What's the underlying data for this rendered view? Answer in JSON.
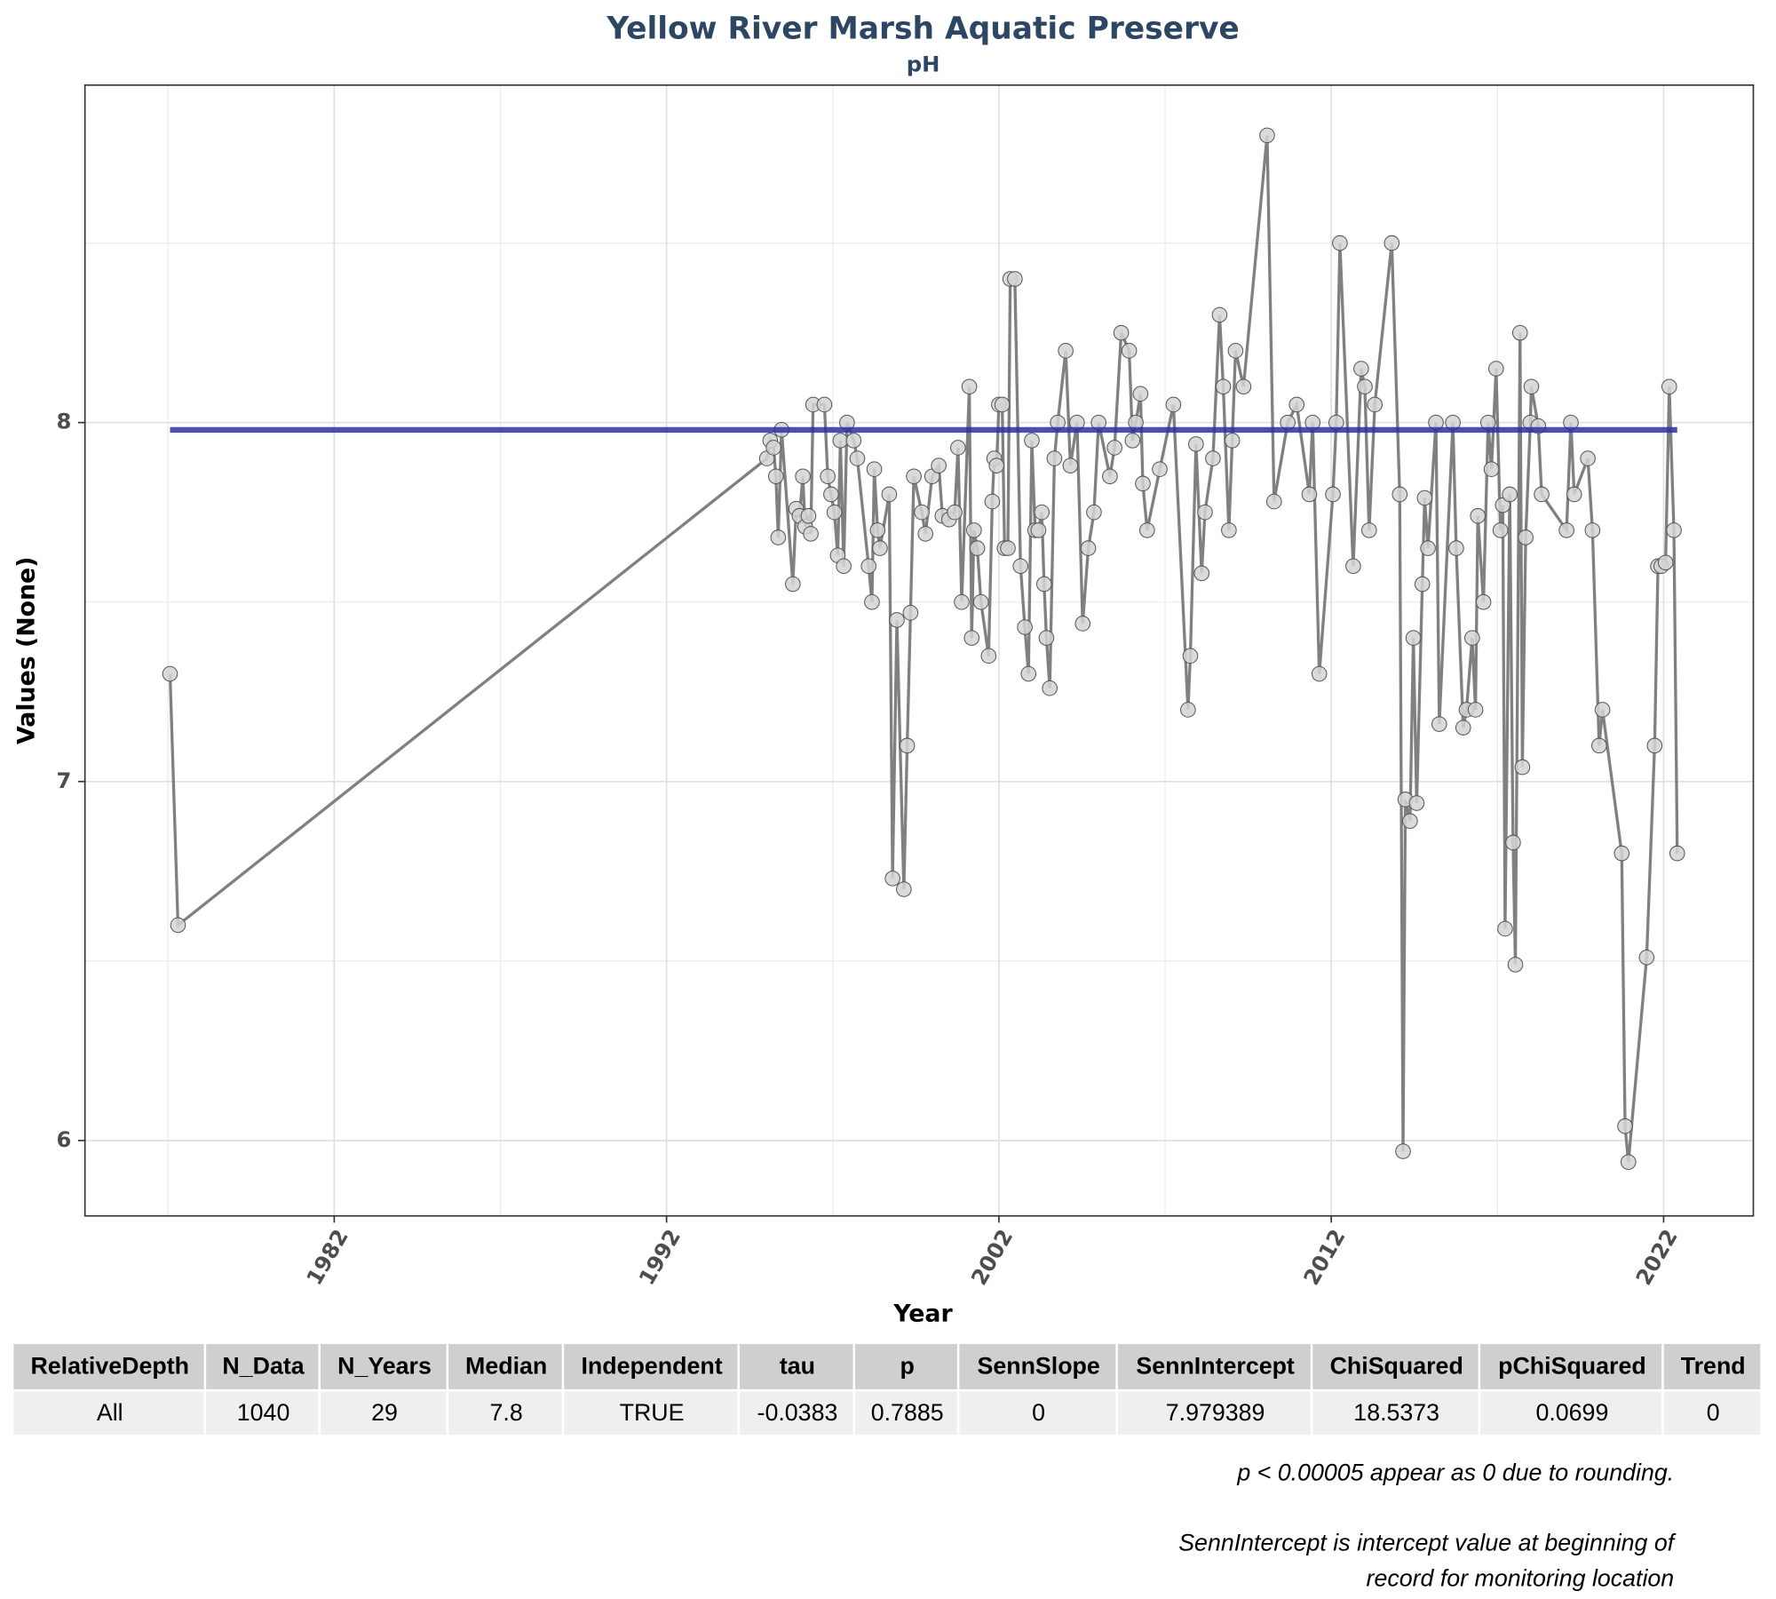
{
  "chart_data": {
    "type": "line",
    "title": "Yellow River Marsh Aquatic Preserve",
    "subtitle": "pH",
    "x_label": "Year",
    "y_label": "Values (None)",
    "xlim": [
      1974.5,
      2024.7
    ],
    "ylim": [
      5.79,
      8.94
    ],
    "xticks": [
      1982,
      1992,
      2002,
      2012,
      2022
    ],
    "yticks": [
      6,
      7,
      8
    ],
    "x_minor_ticks": [
      1977,
      1987,
      1997,
      2007,
      2017
    ],
    "y_minor_ticks": [
      6.5,
      7.5,
      8.5
    ],
    "grid": true,
    "line_color": "#808080",
    "point_color": "#d3d3d3",
    "trend_color": "#2e2eab",
    "x": [
      1977.06,
      1977.3,
      1995.02,
      1995.12,
      1995.22,
      1995.29,
      1995.36,
      1995.46,
      1995.8,
      1995.9,
      1996.0,
      1996.1,
      1996.17,
      1996.27,
      1996.34,
      1996.41,
      1996.75,
      1996.85,
      1996.95,
      1997.05,
      1997.15,
      1997.23,
      1997.33,
      1997.43,
      1997.63,
      1997.74,
      1998.08,
      1998.18,
      1998.25,
      1998.35,
      1998.42,
      1998.7,
      1998.8,
      1998.93,
      1999.14,
      1999.24,
      1999.34,
      1999.44,
      1999.68,
      1999.79,
      1999.99,
      2000.19,
      2000.3,
      2000.5,
      2000.67,
      2000.77,
      2000.88,
      2001.11,
      2001.18,
      2001.25,
      2001.35,
      2001.46,
      2001.69,
      2001.8,
      2001.86,
      2001.93,
      2002.0,
      2002.1,
      2002.17,
      2002.27,
      2002.34,
      2002.48,
      2002.65,
      2002.78,
      2002.89,
      2002.99,
      2003.09,
      2003.19,
      2003.29,
      2003.36,
      2003.43,
      2003.53,
      2003.67,
      2003.77,
      2004.01,
      2004.15,
      2004.35,
      2004.52,
      2004.69,
      2004.86,
      2005.0,
      2005.34,
      2005.48,
      2005.68,
      2005.92,
      2006.02,
      2006.12,
      2006.26,
      2006.33,
      2006.46,
      2006.84,
      2007.25,
      2007.69,
      2007.76,
      2007.93,
      2008.1,
      2008.2,
      2008.44,
      2008.64,
      2008.75,
      2008.92,
      2009.02,
      2009.12,
      2009.36,
      2010.07,
      2010.28,
      2010.69,
      2010.96,
      2011.34,
      2011.44,
      2011.64,
      2012.05,
      2012.15,
      2012.26,
      2012.66,
      2012.9,
      2013.01,
      2013.14,
      2013.31,
      2013.82,
      2014.06,
      2014.16,
      2014.23,
      2014.37,
      2014.47,
      2014.57,
      2014.74,
      2014.81,
      2014.91,
      2015.15,
      2015.25,
      2015.66,
      2015.76,
      2015.97,
      2016.07,
      2016.24,
      2016.34,
      2016.41,
      2016.58,
      2016.72,
      2016.82,
      2016.96,
      2017.09,
      2017.16,
      2017.23,
      2017.37,
      2017.47,
      2017.54,
      2017.68,
      2017.75,
      2017.85,
      2017.99,
      2018.02,
      2018.23,
      2018.33,
      2019.08,
      2019.21,
      2019.31,
      2019.72,
      2019.86,
      2020.06,
      2020.16,
      2020.74,
      2020.84,
      2020.94,
      2021.49,
      2021.73,
      2021.83,
      2021.93,
      2022.06,
      2022.17,
      2022.31,
      2022.41
    ],
    "values": [
      7.3,
      6.6,
      7.9,
      7.95,
      7.93,
      7.85,
      7.68,
      7.98,
      7.55,
      7.76,
      7.74,
      7.85,
      7.71,
      7.74,
      7.69,
      8.05,
      8.05,
      7.85,
      7.8,
      7.75,
      7.63,
      7.95,
      7.6,
      8.0,
      7.95,
      7.9,
      7.6,
      7.5,
      7.87,
      7.7,
      7.65,
      7.8,
      6.73,
      7.45,
      6.7,
      7.1,
      7.47,
      7.85,
      7.75,
      7.69,
      7.85,
      7.88,
      7.74,
      7.73,
      7.75,
      7.93,
      7.5,
      8.1,
      7.4,
      7.7,
      7.65,
      7.5,
      7.35,
      7.78,
      7.9,
      7.88,
      8.05,
      8.05,
      7.65,
      7.65,
      8.4,
      8.4,
      7.6,
      7.43,
      7.3,
      7.95,
      7.7,
      7.7,
      7.75,
      7.55,
      7.4,
      7.26,
      7.9,
      8.0,
      8.2,
      7.88,
      8.0,
      7.44,
      7.65,
      7.75,
      8.0,
      7.85,
      7.93,
      8.25,
      8.2,
      7.95,
      8.0,
      8.08,
      7.83,
      7.7,
      7.87,
      8.05,
      7.2,
      7.35,
      7.94,
      7.58,
      7.75,
      7.9,
      8.3,
      8.1,
      7.7,
      7.95,
      8.2,
      8.1,
      8.8,
      7.78,
      8.0,
      8.05,
      7.8,
      8.0,
      7.3,
      7.8,
      8.0,
      8.5,
      7.6,
      8.15,
      8.1,
      7.7,
      8.05,
      8.5,
      7.8,
      5.97,
      6.95,
      6.89,
      7.4,
      6.94,
      7.55,
      7.79,
      7.65,
      8.0,
      7.16,
      8.0,
      7.65,
      7.15,
      7.2,
      7.4,
      7.2,
      7.74,
      7.5,
      8.0,
      7.87,
      8.15,
      7.7,
      7.77,
      6.59,
      7.8,
      6.83,
      6.49,
      8.25,
      7.04,
      7.68,
      8.0,
      8.1,
      7.99,
      7.8,
      7.7,
      8.0,
      7.8,
      7.9,
      7.7,
      7.1,
      7.2,
      6.8,
      6.04,
      5.94,
      6.51,
      7.1,
      7.6,
      7.6,
      7.61,
      8.1,
      7.7,
      6.8
    ]
  },
  "table": {
    "columns": [
      "RelativeDepth",
      "N_Data",
      "N_Years",
      "Median",
      "Independent",
      "tau",
      "p",
      "SennSlope",
      "SennIntercept",
      "ChiSquared",
      "pChiSquared",
      "Trend"
    ],
    "rows": [
      [
        "All",
        1040,
        29,
        7.8,
        "TRUE",
        -0.0383,
        0.7885,
        0,
        7.979389,
        18.5373,
        0.0699,
        0
      ]
    ]
  },
  "notes": [
    "p < 0.00005 appear as 0 due to rounding.",
    "SennIntercept is intercept value at beginning of",
    "record for monitoring location"
  ]
}
